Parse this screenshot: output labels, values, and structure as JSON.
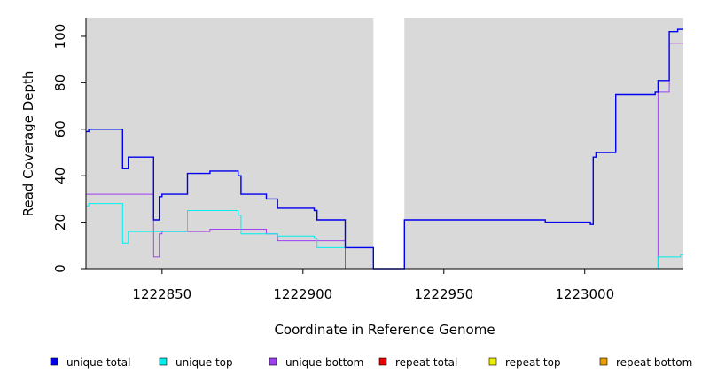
{
  "chart_data": {
    "type": "line",
    "xlabel": "Coordinate in Reference Genome",
    "ylabel": "Read Coverage Depth",
    "xlim": [
      1222823,
      1223035
    ],
    "ylim": [
      0,
      108
    ],
    "x_ticks": [
      1222850,
      1222900,
      1222950,
      1223000
    ],
    "y_ticks": [
      0,
      20,
      40,
      60,
      80,
      100
    ],
    "x_tick_labels": [
      "1222850",
      "1222900",
      "1222950",
      "1223000"
    ],
    "y_tick_labels": [
      "0",
      "20",
      "40",
      "60",
      "80",
      "100"
    ],
    "background_color": "#d9d9d9",
    "gap_regions": [
      [
        1222925,
        1222936
      ]
    ],
    "grid": false,
    "legend_position": "bottom",
    "series": [
      {
        "name": "unique total",
        "color": "#0000ee",
        "x": [
          1222823,
          1222824,
          1222836,
          1222838,
          1222847,
          1222849,
          1222850,
          1222859,
          1222867,
          1222877,
          1222878,
          1222887,
          1222891,
          1222904,
          1222905,
          1222915,
          1222925,
          1222936,
          1222986,
          1223002,
          1223003,
          1223004,
          1223011,
          1223025,
          1223026,
          1223030,
          1223033,
          1223035
        ],
        "y": [
          59,
          60,
          43,
          48,
          21,
          31,
          32,
          41,
          42,
          40,
          32,
          30,
          26,
          25,
          21,
          9,
          0,
          21,
          20,
          19,
          48,
          50,
          75,
          76,
          81,
          102,
          103,
          103
        ]
      },
      {
        "name": "unique top",
        "color": "#00eeee",
        "x": [
          1222823,
          1222824,
          1222836,
          1222838,
          1222847,
          1222859,
          1222877,
          1222878,
          1222891,
          1222904,
          1222905,
          1222915,
          1222925,
          1223003,
          1223026,
          1223034,
          1223035
        ],
        "y": [
          27,
          28,
          11,
          16,
          16,
          25,
          23,
          15,
          14,
          13,
          9,
          9,
          0,
          0,
          5,
          6,
          6
        ]
      },
      {
        "name": "unique bottom",
        "color": "#a040f0",
        "x": [
          1222823,
          1222847,
          1222849,
          1222850,
          1222867,
          1222887,
          1222891,
          1222915,
          1222925,
          1223003,
          1223026,
          1223030,
          1223035
        ],
        "y": [
          32,
          5,
          15,
          16,
          17,
          15,
          12,
          0,
          0,
          0,
          76,
          97,
          97
        ]
      },
      {
        "name": "repeat total",
        "color": "#ee0000",
        "x": [
          1222823,
          1223035
        ],
        "y": [
          0,
          0
        ]
      },
      {
        "name": "repeat top",
        "color": "#eeee00",
        "x": [
          1222823,
          1223035
        ],
        "y": [
          0,
          0
        ]
      },
      {
        "name": "repeat bottom",
        "color": "#ee9a00",
        "x": [
          1222823,
          1223035
        ],
        "y": [
          0,
          0
        ]
      }
    ]
  }
}
